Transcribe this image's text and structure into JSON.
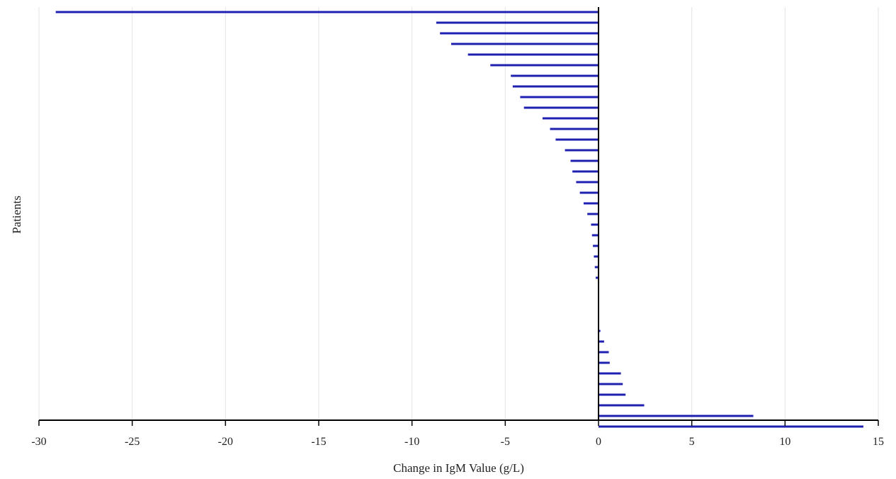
{
  "chart_data": {
    "type": "bar",
    "orientation": "horizontal",
    "title": "",
    "xlabel": "Change in IgM Value (g/L)",
    "ylabel": "Patients",
    "xlim": [
      -30,
      15
    ],
    "xticks": [
      -30,
      -25,
      -20,
      -15,
      -10,
      -5,
      0,
      5,
      10,
      15
    ],
    "grid": "vertical",
    "legend": "none",
    "bar_color": "#1f1fb0",
    "values": [
      -29.1,
      -8.7,
      -8.5,
      -7.9,
      -7.0,
      -5.8,
      -4.7,
      -4.6,
      -4.2,
      -4.0,
      -3.0,
      -2.6,
      -2.3,
      -1.8,
      -1.5,
      -1.4,
      -1.2,
      -1.0,
      -0.8,
      -0.6,
      -0.4,
      -0.35,
      -0.3,
      -0.25,
      -0.2,
      -0.15,
      0,
      0,
      0,
      0,
      0.1,
      0.3,
      0.55,
      0.6,
      1.2,
      1.3,
      1.45,
      2.45,
      8.3,
      14.2
    ]
  }
}
